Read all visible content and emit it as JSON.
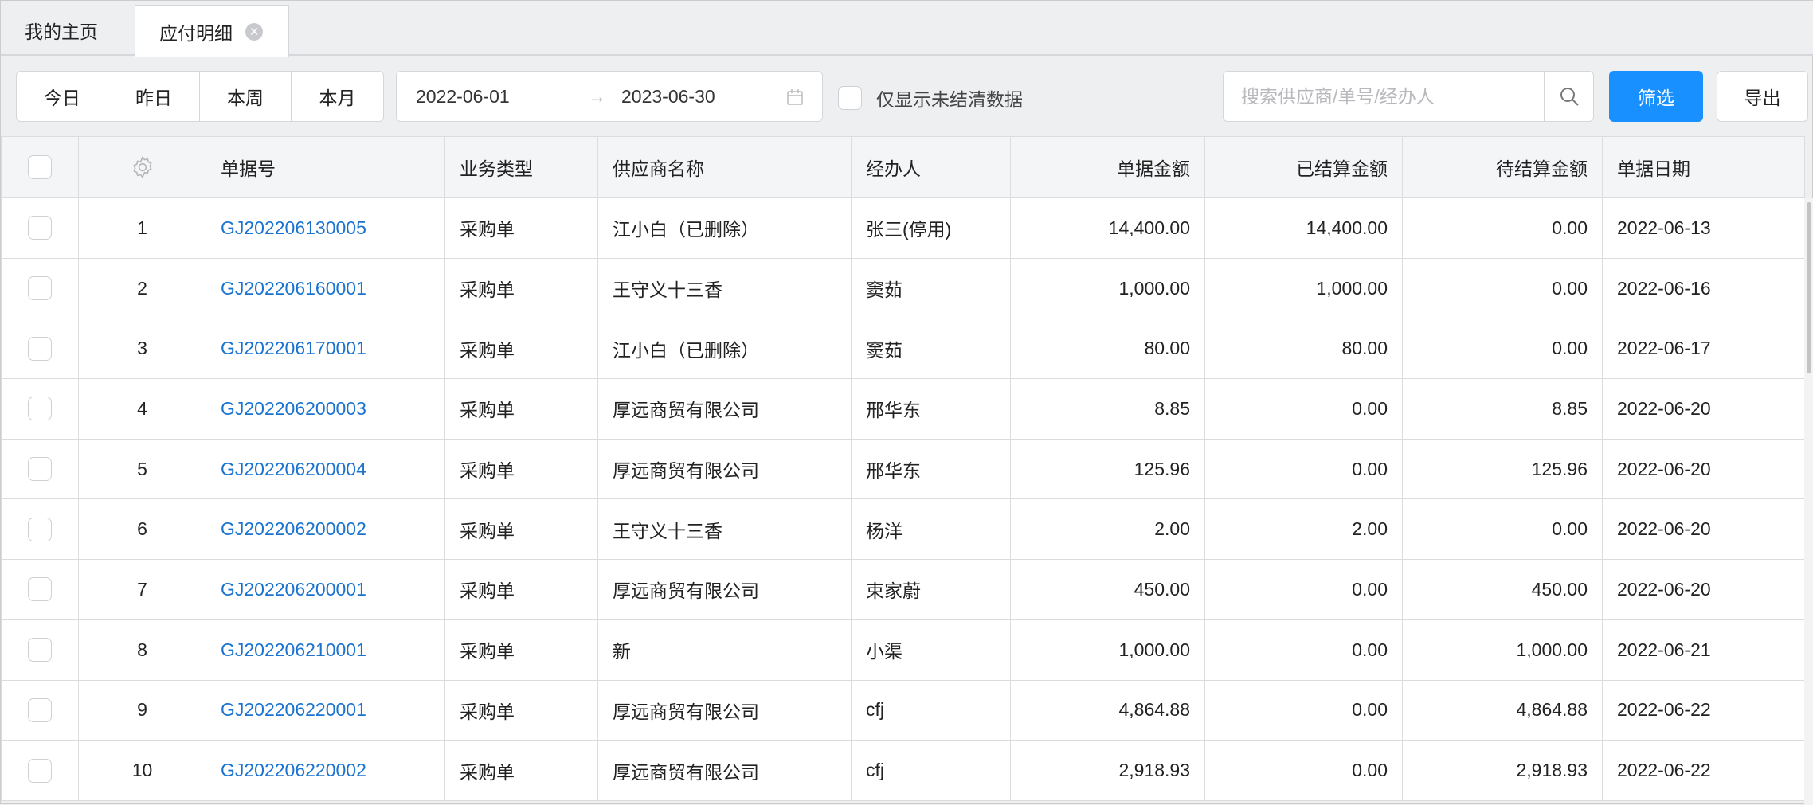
{
  "tabs": [
    {
      "label": "我的主页",
      "active": false
    },
    {
      "label": "应付明细",
      "active": true
    }
  ],
  "toolbar": {
    "quick_dates": [
      "今日",
      "昨日",
      "本周",
      "本月"
    ],
    "date_start": "2022-06-01",
    "date_end": "2023-06-30",
    "arrow": "→",
    "unsettled_label": "仅显示未结清数据",
    "unsettled_checked": false,
    "search_placeholder": "搜索供应商/单号/经办人",
    "search_value": "",
    "filter_label": "筛选",
    "export_label": "导出"
  },
  "colors": {
    "primary": "#1890ff",
    "link": "#1a73d0"
  },
  "table": {
    "headers": [
      "单据号",
      "业务类型",
      "供应商名称",
      "经办人",
      "单据金额",
      "已结算金额",
      "待结算金额",
      "单据日期"
    ],
    "rows": [
      [
        "1",
        "GJ202206130005",
        "采购单",
        "江小白（已删除）",
        "张三(停用)",
        "14,400.00",
        "14,400.00",
        "0.00",
        "2022-06-13"
      ],
      [
        "2",
        "GJ202206160001",
        "采购单",
        "王守义十三香",
        "窦茹",
        "1,000.00",
        "1,000.00",
        "0.00",
        "2022-06-16"
      ],
      [
        "3",
        "GJ202206170001",
        "采购单",
        "江小白（已删除）",
        "窦茹",
        "80.00",
        "80.00",
        "0.00",
        "2022-06-17"
      ],
      [
        "4",
        "GJ202206200003",
        "采购单",
        "厚远商贸有限公司",
        "邢华东",
        "8.85",
        "0.00",
        "8.85",
        "2022-06-20"
      ],
      [
        "5",
        "GJ202206200004",
        "采购单",
        "厚远商贸有限公司",
        "邢华东",
        "125.96",
        "0.00",
        "125.96",
        "2022-06-20"
      ],
      [
        "6",
        "GJ202206200002",
        "采购单",
        "王守义十三香",
        "杨洋",
        "2.00",
        "2.00",
        "0.00",
        "2022-06-20"
      ],
      [
        "7",
        "GJ202206200001",
        "采购单",
        "厚远商贸有限公司",
        "束家蔚",
        "450.00",
        "0.00",
        "450.00",
        "2022-06-20"
      ],
      [
        "8",
        "GJ202206210001",
        "采购单",
        "新",
        "小渠",
        "1,000.00",
        "0.00",
        "1,000.00",
        "2022-06-21"
      ],
      [
        "9",
        "GJ202206220001",
        "采购单",
        "厚远商贸有限公司",
        "cfj",
        "4,864.88",
        "0.00",
        "4,864.88",
        "2022-06-22"
      ],
      [
        "10",
        "GJ202206220002",
        "采购单",
        "厚远商贸有限公司",
        "cfj",
        "2,918.93",
        "0.00",
        "2,918.93",
        "2022-06-22"
      ]
    ]
  }
}
